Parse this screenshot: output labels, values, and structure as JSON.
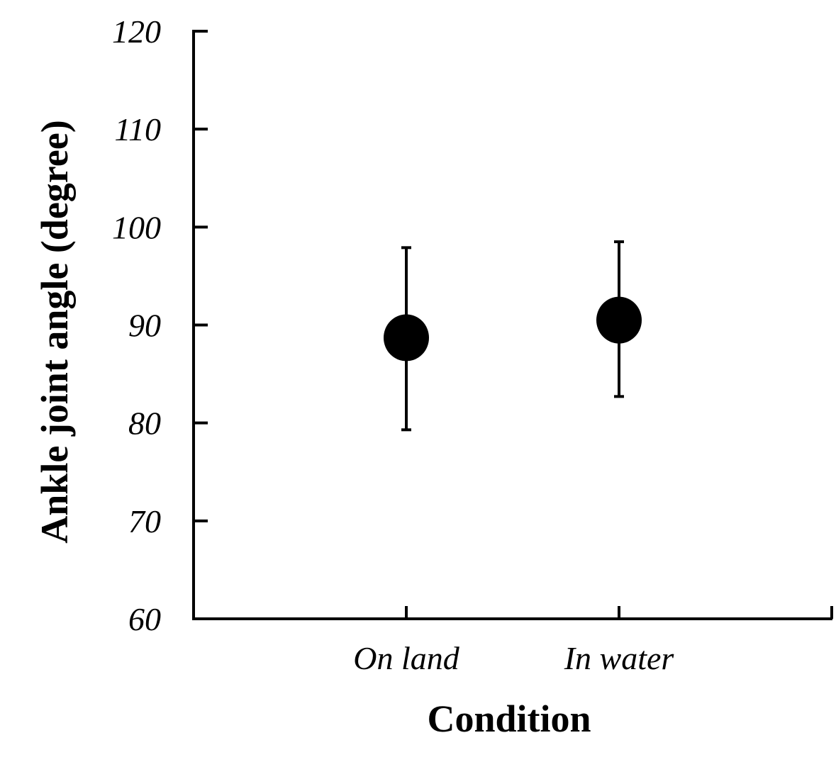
{
  "chart_data": {
    "type": "scatter",
    "categories": [
      "On land",
      "In water"
    ],
    "series": [
      {
        "values": [
          88.7,
          90.5
        ],
        "error_low": [
          79.3,
          82.7
        ],
        "error_high": [
          97.9,
          98.5
        ]
      }
    ],
    "xlabel": "Condition",
    "ylabel": "Ankle joint angle (degree)",
    "ylim": [
      60,
      120
    ],
    "yticks": [
      120,
      110,
      100,
      90,
      80,
      70,
      60
    ],
    "grid": false,
    "marker_color": "#000000",
    "axis_color": "#000000"
  }
}
